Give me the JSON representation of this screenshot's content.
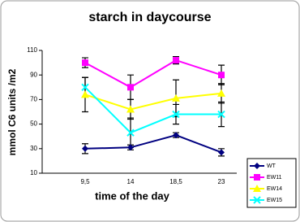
{
  "chart_data": {
    "type": "line",
    "title": "starch in daycourse",
    "x_label": "time of the day",
    "y_label": "mmol C6 units /m2",
    "categories": [
      "9,5",
      "14",
      "18,5",
      "23"
    ],
    "ylim": [
      10,
      110
    ],
    "yticks": [
      10,
      30,
      50,
      70,
      90,
      110
    ],
    "legend": "right",
    "series": [
      {
        "name": "WT",
        "color": "#000080",
        "marker": "diamond",
        "values": [
          30,
          31,
          41,
          27
        ],
        "errors": [
          4,
          2,
          2,
          3
        ]
      },
      {
        "name": "EW11",
        "color": "#ff00ff",
        "marker": "square",
        "values": [
          100,
          80,
          102,
          90
        ],
        "errors": [
          4,
          10,
          3,
          8
        ]
      },
      {
        "name": "EW14",
        "color": "#ffff00",
        "marker": "triangle",
        "values": [
          74,
          62,
          71,
          75
        ],
        "errors": [
          14,
          8,
          15,
          8
        ]
      },
      {
        "name": "EW15",
        "color": "#00ffff",
        "marker": "x",
        "values": [
          80,
          43,
          58,
          58
        ],
        "errors": [
          8,
          12,
          8,
          10
        ]
      }
    ]
  }
}
